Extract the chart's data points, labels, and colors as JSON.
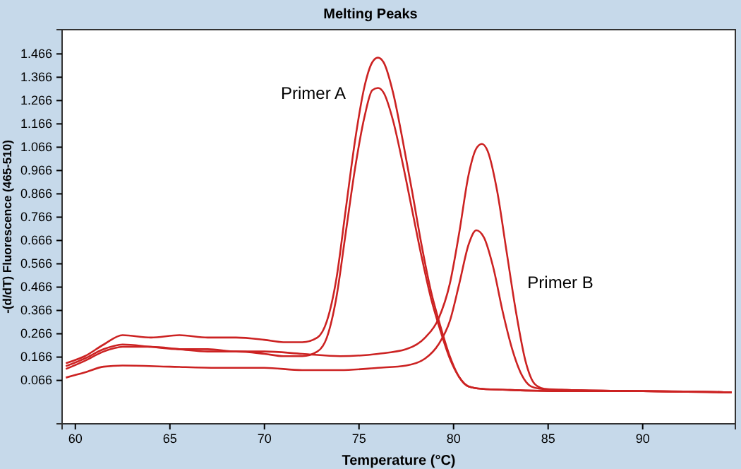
{
  "chart_data": {
    "type": "line",
    "title": "Melting Peaks",
    "xlabel": "Temperature (°C)",
    "ylabel": "-(d/dT) Fluorescence (465-510)",
    "xlim": [
      59.3,
      94.9
    ],
    "xticks": [
      60,
      65,
      70,
      75,
      80,
      85,
      90
    ],
    "ylim": [
      -0.12,
      1.57
    ],
    "yticks": [
      0.066,
      0.166,
      0.266,
      0.366,
      0.466,
      0.566,
      0.666,
      0.766,
      0.866,
      0.966,
      1.066,
      1.166,
      1.266,
      1.366,
      1.466
    ],
    "grid": false,
    "marker": "none",
    "line_style": "solid",
    "annotations": [
      "Primer A",
      "Primer B"
    ],
    "series": [
      {
        "color": "#cc2222",
        "x": [
          59.5,
          60.5,
          61.5,
          62.5,
          64,
          65.5,
          67,
          68.5,
          70,
          71,
          72,
          72.8,
          73.3,
          73.8,
          74.3,
          74.8,
          75.3,
          75.7,
          76,
          76.3,
          76.8,
          77.3,
          77.8,
          78.3,
          78.8,
          79.3,
          79.8,
          80.3,
          80.8,
          81.5,
          83,
          86,
          90,
          94.7
        ],
        "values": [
          0.14,
          0.17,
          0.22,
          0.26,
          0.25,
          0.26,
          0.25,
          0.25,
          0.24,
          0.23,
          0.23,
          0.25,
          0.32,
          0.5,
          0.8,
          1.1,
          1.33,
          1.43,
          1.45,
          1.43,
          1.3,
          1.1,
          0.88,
          0.65,
          0.45,
          0.3,
          0.17,
          0.08,
          0.04,
          0.03,
          0.025,
          0.02,
          0.02,
          0.015
        ]
      },
      {
        "color": "#cc2222",
        "x": [
          59.5,
          60.5,
          61.5,
          62.5,
          64,
          65.5,
          67,
          68.5,
          70,
          71,
          72,
          72.8,
          73.3,
          73.8,
          74.3,
          74.8,
          75.3,
          75.7,
          76,
          76.3,
          76.8,
          77.3,
          77.8,
          78.3,
          78.8,
          79.3,
          79.8,
          80.3,
          80.8,
          81.5,
          83,
          86,
          90,
          94.7
        ],
        "values": [
          0.115,
          0.15,
          0.19,
          0.21,
          0.21,
          0.2,
          0.19,
          0.19,
          0.18,
          0.17,
          0.17,
          0.19,
          0.25,
          0.42,
          0.7,
          0.98,
          1.2,
          1.31,
          1.32,
          1.3,
          1.18,
          1.0,
          0.8,
          0.6,
          0.42,
          0.28,
          0.16,
          0.08,
          0.04,
          0.03,
          0.025,
          0.02,
          0.02,
          0.015
        ]
      },
      {
        "color": "#cc2222",
        "x": [
          59.5,
          60.5,
          61.5,
          62.5,
          64,
          65.5,
          67,
          68.5,
          70,
          72,
          74,
          76,
          77.5,
          78.5,
          79.2,
          79.8,
          80.3,
          80.8,
          81.2,
          81.5,
          81.8,
          82.3,
          82.8,
          83.3,
          83.8,
          84.3,
          84.8,
          86,
          90,
          94.7
        ],
        "values": [
          0.127,
          0.16,
          0.2,
          0.22,
          0.21,
          0.2,
          0.2,
          0.19,
          0.19,
          0.18,
          0.17,
          0.18,
          0.2,
          0.25,
          0.33,
          0.48,
          0.7,
          0.95,
          1.06,
          1.08,
          1.05,
          0.88,
          0.62,
          0.36,
          0.15,
          0.05,
          0.03,
          0.025,
          0.02,
          0.015
        ]
      },
      {
        "color": "#cc2222",
        "x": [
          59.5,
          60.5,
          61.5,
          62.5,
          65,
          67.5,
          70,
          72,
          74,
          76,
          77.5,
          78.5,
          79.2,
          79.8,
          80.3,
          80.8,
          81.2,
          81.6,
          82.1,
          82.6,
          83.1,
          83.6,
          84.1,
          84.6,
          86,
          90,
          94.7
        ],
        "values": [
          0.078,
          0.1,
          0.125,
          0.13,
          0.125,
          0.12,
          0.12,
          0.11,
          0.11,
          0.12,
          0.13,
          0.16,
          0.22,
          0.32,
          0.48,
          0.65,
          0.71,
          0.68,
          0.55,
          0.36,
          0.2,
          0.09,
          0.04,
          0.03,
          0.025,
          0.02,
          0.015
        ]
      }
    ]
  }
}
